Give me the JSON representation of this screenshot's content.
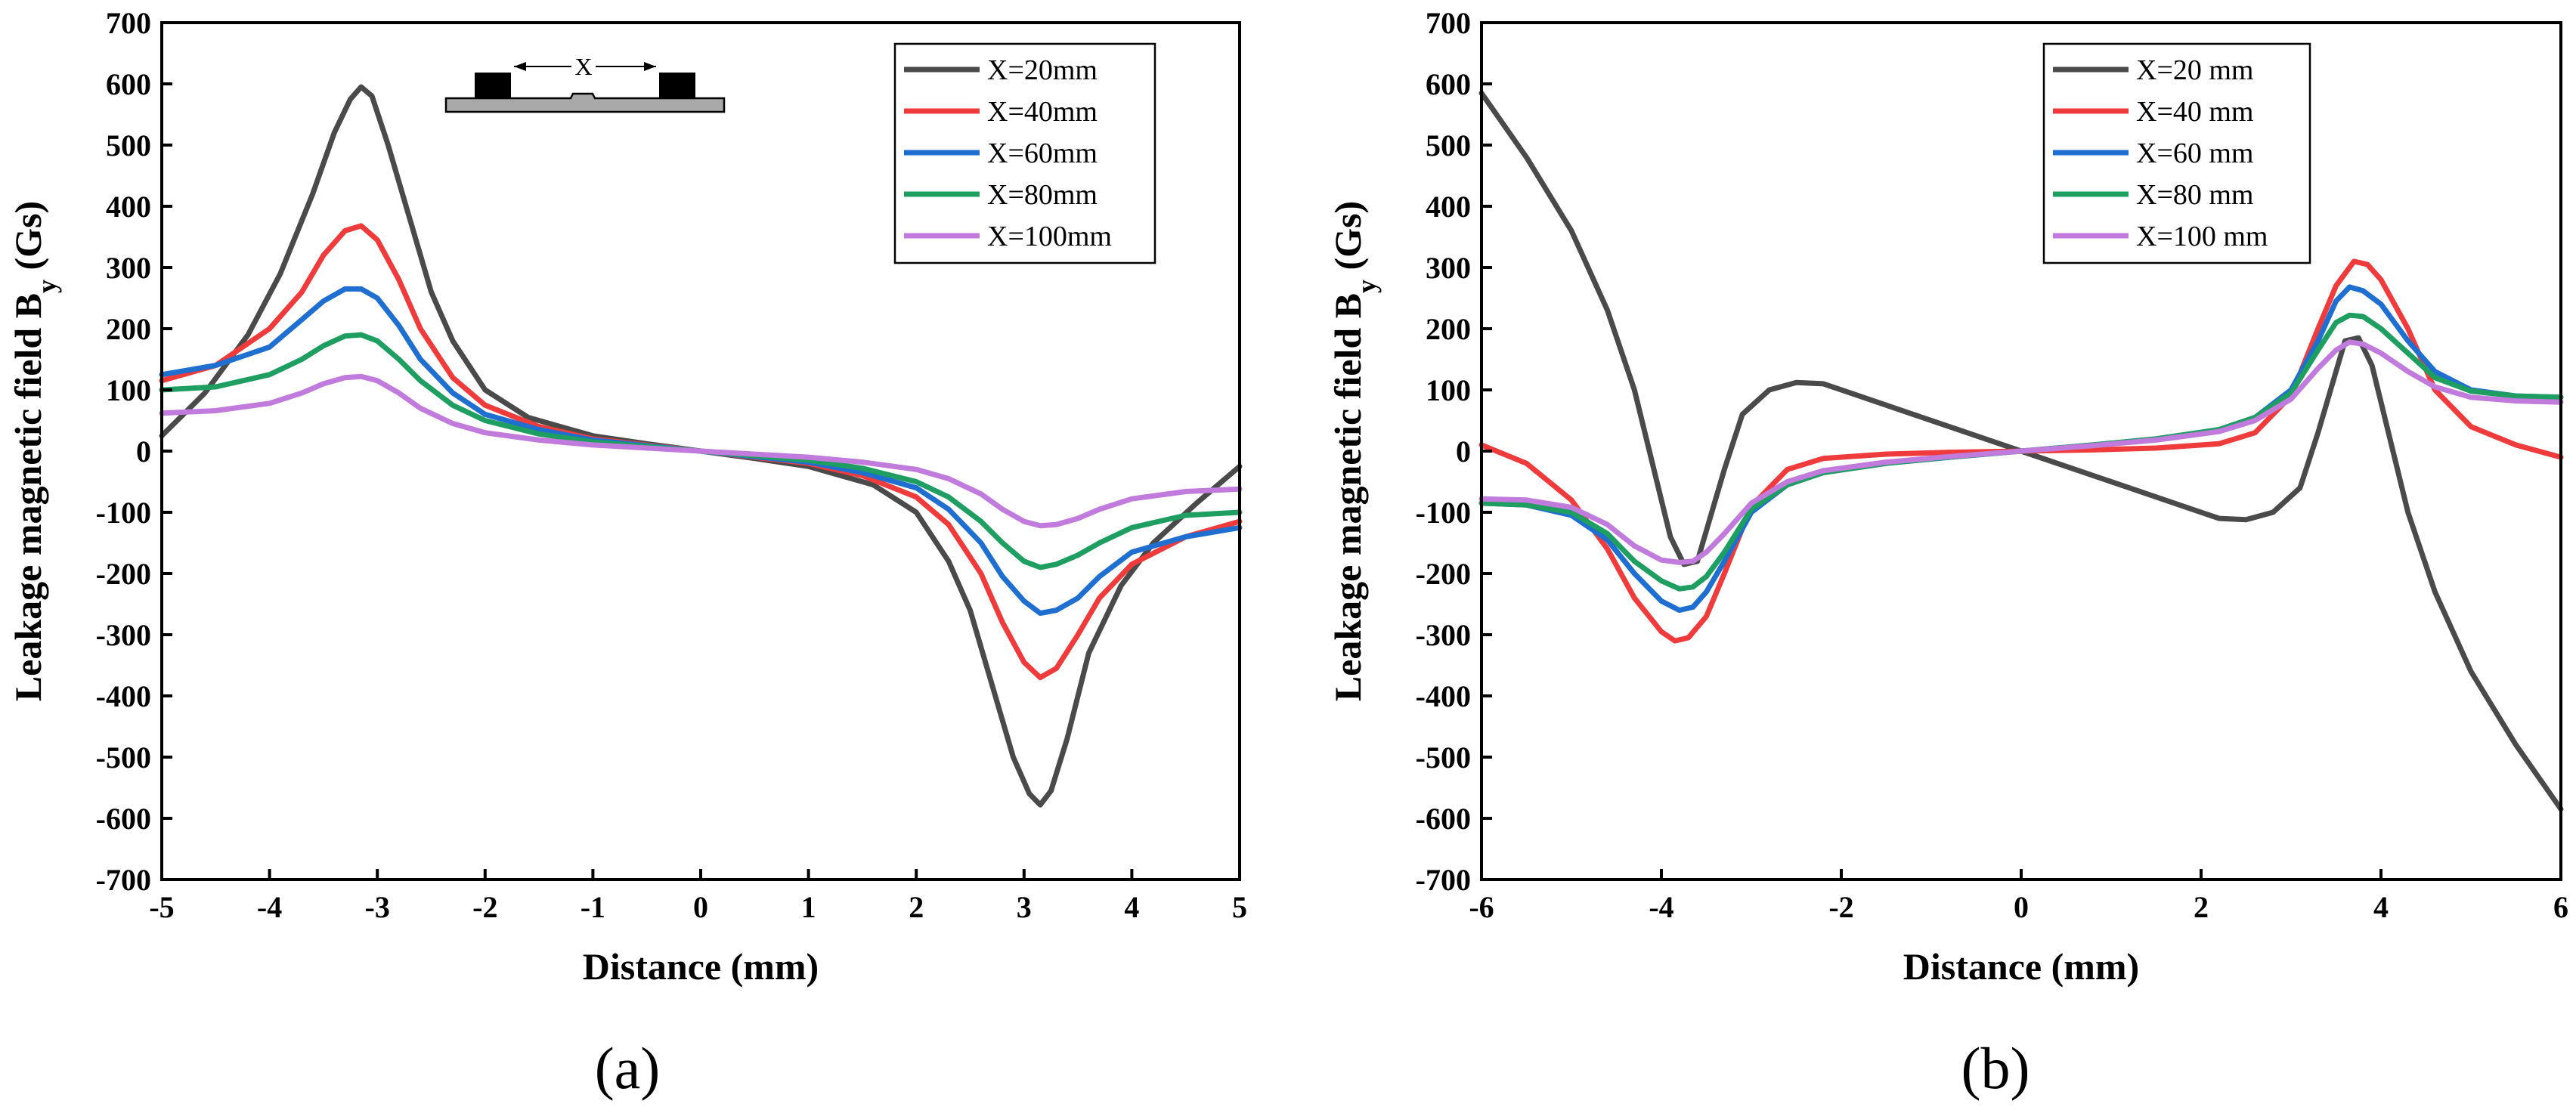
{
  "chart_data": [
    {
      "id": "a",
      "type": "line",
      "panel_label": "(a)",
      "xlabel": "Distance (mm)",
      "ylabel_main": "Leakage magnetic field B",
      "ylabel_sub": "y",
      "ylabel_unit": " (Gs)",
      "xlim": [
        -5,
        5
      ],
      "ylim": [
        -700,
        700
      ],
      "xticks": [
        -5,
        -4,
        -3,
        -2,
        -1,
        0,
        1,
        2,
        3,
        4,
        5
      ],
      "yticks": [
        -700,
        -600,
        -500,
        -400,
        -300,
        -200,
        -100,
        0,
        100,
        200,
        300,
        400,
        500,
        600,
        700
      ],
      "legend_position": "top-right",
      "inset_label": "X",
      "series": [
        {
          "name": "X=20mm",
          "color": "#4a4a4a",
          "x": [
            -5,
            -4.6,
            -4.2,
            -3.9,
            -3.6,
            -3.4,
            -3.25,
            -3.15,
            -3.05,
            -2.9,
            -2.7,
            -2.5,
            -2.3,
            -2.0,
            -1.6,
            -1.0,
            -0.5,
            0,
            0.5,
            1.0,
            1.6,
            2.0,
            2.3,
            2.5,
            2.7,
            2.9,
            3.05,
            3.15,
            3.25,
            3.4,
            3.6,
            3.9,
            4.2,
            4.6,
            5
          ],
          "y": [
            25,
            95,
            190,
            290,
            420,
            520,
            575,
            595,
            580,
            500,
            380,
            260,
            180,
            100,
            55,
            25,
            12,
            0,
            -12,
            -25,
            -55,
            -100,
            -180,
            -260,
            -380,
            -500,
            -560,
            -578,
            -555,
            -470,
            -330,
            -220,
            -150,
            -85,
            -25
          ]
        },
        {
          "name": "X=40mm",
          "color": "#ef3b3b",
          "x": [
            -5,
            -4.5,
            -4.0,
            -3.7,
            -3.5,
            -3.3,
            -3.15,
            -3.0,
            -2.8,
            -2.6,
            -2.3,
            -2.0,
            -1.5,
            -1.0,
            0,
            1.0,
            1.5,
            2.0,
            2.3,
            2.6,
            2.8,
            3.0,
            3.15,
            3.3,
            3.5,
            3.7,
            4.0,
            4.5,
            5
          ],
          "y": [
            115,
            140,
            200,
            260,
            320,
            360,
            368,
            345,
            280,
            200,
            120,
            75,
            40,
            20,
            0,
            -20,
            -40,
            -75,
            -120,
            -200,
            -280,
            -345,
            -370,
            -355,
            -300,
            -240,
            -185,
            -140,
            -115
          ]
        },
        {
          "name": "X=60mm",
          "color": "#1f6fd1",
          "x": [
            -5,
            -4.5,
            -4.0,
            -3.7,
            -3.5,
            -3.3,
            -3.15,
            -3.0,
            -2.8,
            -2.6,
            -2.3,
            -2.0,
            -1.5,
            -1.0,
            0,
            1.0,
            1.5,
            2.0,
            2.3,
            2.6,
            2.8,
            3.0,
            3.15,
            3.3,
            3.5,
            3.7,
            4.0,
            4.5,
            5
          ],
          "y": [
            125,
            140,
            170,
            215,
            245,
            265,
            265,
            250,
            205,
            150,
            95,
            60,
            35,
            18,
            0,
            -18,
            -35,
            -60,
            -95,
            -150,
            -205,
            -245,
            -265,
            -260,
            -240,
            -205,
            -165,
            -140,
            -125
          ]
        },
        {
          "name": "X=80mm",
          "color": "#1f9e62",
          "x": [
            -5,
            -4.5,
            -4.0,
            -3.7,
            -3.5,
            -3.3,
            -3.15,
            -3.0,
            -2.8,
            -2.6,
            -2.3,
            -2.0,
            -1.5,
            -1.0,
            0,
            1.0,
            1.5,
            2.0,
            2.3,
            2.6,
            2.8,
            3.0,
            3.15,
            3.3,
            3.5,
            3.7,
            4.0,
            4.5,
            5
          ],
          "y": [
            100,
            105,
            125,
            150,
            172,
            188,
            190,
            180,
            150,
            115,
            75,
            50,
            28,
            15,
            0,
            -15,
            -28,
            -50,
            -75,
            -115,
            -150,
            -180,
            -190,
            -185,
            -170,
            -150,
            -125,
            -105,
            -100
          ]
        },
        {
          "name": "X=100mm",
          "color": "#c07bdc",
          "x": [
            -5,
            -4.5,
            -4.0,
            -3.7,
            -3.5,
            -3.3,
            -3.15,
            -3.0,
            -2.8,
            -2.6,
            -2.3,
            -2.0,
            -1.5,
            -1.0,
            0,
            1.0,
            1.5,
            2.0,
            2.3,
            2.6,
            2.8,
            3.0,
            3.15,
            3.3,
            3.5,
            3.7,
            4.0,
            4.5,
            5
          ],
          "y": [
            62,
            66,
            78,
            95,
            110,
            120,
            122,
            115,
            95,
            70,
            45,
            30,
            18,
            10,
            0,
            -10,
            -18,
            -30,
            -45,
            -70,
            -95,
            -115,
            -122,
            -120,
            -110,
            -95,
            -78,
            -66,
            -62
          ]
        }
      ]
    },
    {
      "id": "b",
      "type": "line",
      "panel_label": "(b)",
      "xlabel": "Distance (mm)",
      "ylabel_main": "Leakage magnetic field B",
      "ylabel_sub": "y",
      "ylabel_unit": " (Gs)",
      "xlim": [
        -6,
        6
      ],
      "ylim": [
        -700,
        700
      ],
      "xticks": [
        -6,
        -4,
        -2,
        0,
        2,
        4,
        6
      ],
      "yticks": [
        -700,
        -600,
        -500,
        -400,
        -300,
        -200,
        -100,
        0,
        100,
        200,
        300,
        400,
        500,
        600,
        700
      ],
      "legend_position": "top-center",
      "series": [
        {
          "name": "X=20 mm",
          "color": "#4a4a4a",
          "x": [
            -6,
            -5.5,
            -5.0,
            -4.6,
            -4.3,
            -4.1,
            -3.9,
            -3.75,
            -3.6,
            -3.5,
            -3.3,
            -3.1,
            -2.8,
            -2.5,
            -2.2,
            -1.8,
            -1.2,
            -0.6,
            0,
            0.6,
            1.2,
            1.8,
            2.2,
            2.5,
            2.8,
            3.1,
            3.3,
            3.5,
            3.6,
            3.75,
            3.9,
            4.1,
            4.3,
            4.6,
            5.0,
            5.5,
            6
          ],
          "y": [
            585,
            480,
            360,
            230,
            100,
            -20,
            -140,
            -185,
            -180,
            -130,
            -30,
            60,
            100,
            112,
            110,
            90,
            60,
            30,
            0,
            -30,
            -60,
            -90,
            -110,
            -112,
            -100,
            -60,
            30,
            130,
            180,
            185,
            140,
            20,
            -100,
            -230,
            -360,
            -480,
            -585
          ]
        },
        {
          "name": "X=40 mm",
          "color": "#ef3b3b",
          "x": [
            -6,
            -5.5,
            -5.0,
            -4.6,
            -4.3,
            -4.0,
            -3.85,
            -3.7,
            -3.5,
            -3.3,
            -3.0,
            -2.6,
            -2.2,
            -1.5,
            -0.8,
            0,
            0.8,
            1.5,
            2.2,
            2.6,
            3.0,
            3.3,
            3.5,
            3.7,
            3.85,
            4.0,
            4.3,
            4.6,
            5.0,
            5.5,
            6
          ],
          "y": [
            10,
            -20,
            -80,
            -160,
            -240,
            -295,
            -310,
            -305,
            -270,
            -200,
            -90,
            -30,
            -12,
            -5,
            -2,
            0,
            2,
            5,
            12,
            30,
            90,
            200,
            270,
            310,
            305,
            280,
            200,
            100,
            40,
            10,
            -10
          ]
        },
        {
          "name": "X=60 mm",
          "color": "#1f6fd1",
          "x": [
            -6,
            -5.5,
            -5.0,
            -4.6,
            -4.3,
            -4.0,
            -3.8,
            -3.65,
            -3.5,
            -3.3,
            -3.0,
            -2.6,
            -2.2,
            -1.5,
            -0.8,
            0,
            0.8,
            1.5,
            2.2,
            2.6,
            3.0,
            3.3,
            3.5,
            3.65,
            3.8,
            4.0,
            4.3,
            4.6,
            5.0,
            5.5,
            6
          ],
          "y": [
            -85,
            -88,
            -105,
            -145,
            -200,
            -245,
            -260,
            -255,
            -230,
            -180,
            -100,
            -55,
            -35,
            -20,
            -10,
            0,
            10,
            20,
            35,
            55,
            100,
            180,
            245,
            268,
            262,
            240,
            180,
            130,
            100,
            90,
            88
          ]
        },
        {
          "name": "X=80 mm",
          "color": "#1f9e62",
          "x": [
            -6,
            -5.5,
            -5.0,
            -4.6,
            -4.3,
            -4.0,
            -3.8,
            -3.65,
            -3.5,
            -3.3,
            -3.0,
            -2.6,
            -2.2,
            -1.5,
            -0.8,
            0,
            0.8,
            1.5,
            2.2,
            2.6,
            3.0,
            3.3,
            3.5,
            3.65,
            3.8,
            4.0,
            4.3,
            4.6,
            5.0,
            5.5,
            6
          ],
          "y": [
            -85,
            -88,
            -100,
            -135,
            -180,
            -212,
            -225,
            -222,
            -205,
            -165,
            -95,
            -55,
            -35,
            -20,
            -10,
            0,
            10,
            20,
            35,
            55,
            95,
            165,
            210,
            222,
            220,
            200,
            160,
            120,
            98,
            90,
            88
          ]
        },
        {
          "name": "X=100 mm",
          "color": "#c07bdc",
          "x": [
            -6,
            -5.5,
            -5.0,
            -4.6,
            -4.3,
            -4.0,
            -3.8,
            -3.65,
            -3.5,
            -3.3,
            -3.0,
            -2.6,
            -2.2,
            -1.5,
            -0.8,
            0,
            0.8,
            1.5,
            2.2,
            2.6,
            3.0,
            3.3,
            3.5,
            3.65,
            3.8,
            4.0,
            4.3,
            4.6,
            5.0,
            5.5,
            6
          ],
          "y": [
            -78,
            -80,
            -92,
            -120,
            -155,
            -178,
            -182,
            -180,
            -165,
            -135,
            -85,
            -50,
            -32,
            -18,
            -9,
            0,
            9,
            18,
            32,
            50,
            85,
            135,
            165,
            178,
            175,
            160,
            130,
            105,
            88,
            82,
            80
          ]
        }
      ]
    }
  ]
}
